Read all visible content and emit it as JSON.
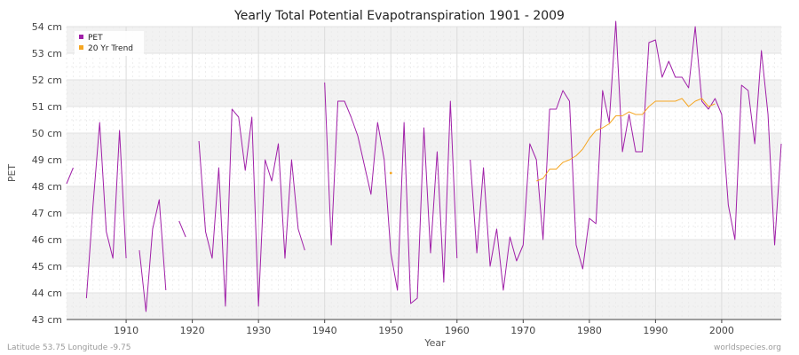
{
  "chart_data": {
    "type": "line",
    "title": "Yearly Total Potential Evapotranspiration 1901 - 2009",
    "xlabel": "Year",
    "ylabel": "PET",
    "xlim": [
      1901,
      2009
    ],
    "ylim": [
      43,
      54
    ],
    "y_unit": "cm",
    "x_ticks": [
      1910,
      1920,
      1930,
      1940,
      1950,
      1960,
      1970,
      1980,
      1990,
      2000
    ],
    "y_ticks": [
      43,
      44,
      45,
      46,
      47,
      48,
      49,
      50,
      51,
      52,
      53,
      54
    ],
    "y_tick_labels": [
      "43 cm",
      "44 cm",
      "45 cm",
      "46 cm",
      "47 cm",
      "48 cm",
      "49 cm",
      "50 cm",
      "51 cm",
      "52 cm",
      "53 cm",
      "54 cm"
    ],
    "grid": true,
    "legend_position": "top-left",
    "series": [
      {
        "name": "PET",
        "color": "#a020a8",
        "x": [
          1901,
          1902,
          1903,
          1904,
          1905,
          1906,
          1907,
          1908,
          1909,
          1910,
          1911,
          1912,
          1913,
          1914,
          1915,
          1916,
          1917,
          1918,
          1919,
          1920,
          1921,
          1922,
          1923,
          1924,
          1925,
          1926,
          1927,
          1928,
          1929,
          1930,
          1931,
          1932,
          1933,
          1934,
          1935,
          1936,
          1937,
          1938,
          1939,
          1940,
          1941,
          1942,
          1943,
          1944,
          1945,
          1946,
          1947,
          1948,
          1949,
          1950,
          1951,
          1952,
          1953,
          1954,
          1955,
          1956,
          1957,
          1958,
          1959,
          1960,
          1961,
          1962,
          1963,
          1964,
          1965,
          1966,
          1967,
          1968,
          1969,
          1970,
          1971,
          1972,
          1973,
          1974,
          1975,
          1976,
          1977,
          1978,
          1979,
          1980,
          1981,
          1982,
          1983,
          1984,
          1985,
          1986,
          1987,
          1988,
          1989,
          1990,
          1991,
          1992,
          1993,
          1994,
          1995,
          1996,
          1997,
          1998,
          1999,
          2000,
          2001,
          2002,
          2003,
          2004,
          2005,
          2006,
          2007,
          2008,
          2009
        ],
        "values": [
          48.1,
          48.7,
          null,
          43.8,
          47.3,
          50.4,
          46.3,
          45.3,
          50.1,
          45.3,
          null,
          45.6,
          43.3,
          46.4,
          47.5,
          44.1,
          null,
          46.7,
          46.1,
          null,
          49.7,
          46.3,
          45.3,
          48.7,
          43.5,
          50.9,
          50.6,
          48.6,
          50.6,
          43.5,
          49.0,
          48.2,
          49.6,
          45.3,
          49.0,
          46.4,
          45.6,
          null,
          null,
          51.9,
          45.8,
          51.2,
          51.2,
          50.6,
          49.9,
          48.8,
          47.7,
          50.4,
          49.0,
          45.5,
          44.1,
          50.4,
          43.6,
          43.8,
          50.2,
          45.5,
          49.3,
          44.4,
          51.2,
          45.3,
          null,
          49.0,
          45.5,
          48.7,
          45.0,
          46.4,
          44.1,
          46.1,
          45.2,
          45.8,
          49.6,
          49.0,
          46.0,
          50.9,
          50.9,
          51.6,
          51.2,
          45.8,
          44.9,
          46.8,
          46.6,
          51.6,
          50.4,
          54.2,
          49.3,
          50.7,
          49.3,
          49.3,
          53.4,
          53.5,
          52.1,
          52.7,
          52.1,
          52.1,
          51.7,
          54.0,
          51.2,
          50.9,
          51.3,
          50.7,
          47.3,
          46.0,
          51.8,
          51.6,
          49.6,
          53.1,
          50.7,
          45.8,
          49.6
        ]
      },
      {
        "name": "20 Yr Trend",
        "color": "#f5a623",
        "x": [
          1950,
          1972,
          1973,
          1974,
          1975,
          1976,
          1977,
          1978,
          1979,
          1980,
          1981,
          1982,
          1983,
          1984,
          1985,
          1986,
          1987,
          1988,
          1989,
          1990,
          1991,
          1992,
          1993,
          1994,
          1995,
          1996,
          1997,
          1998,
          1999
        ],
        "values": [
          48.5,
          48.2,
          48.3,
          48.65,
          48.65,
          48.9,
          49.0,
          49.15,
          49.4,
          49.8,
          50.1,
          50.2,
          50.35,
          50.65,
          50.65,
          50.8,
          50.7,
          50.7,
          51.0,
          51.2,
          51.2,
          51.2,
          51.2,
          51.3,
          51.0,
          51.2,
          51.3,
          51.0,
          51.1
        ]
      }
    ]
  },
  "footer": {
    "location": "Latitude 53.75 Longitude -9.75",
    "source": "worldspecies.org"
  }
}
